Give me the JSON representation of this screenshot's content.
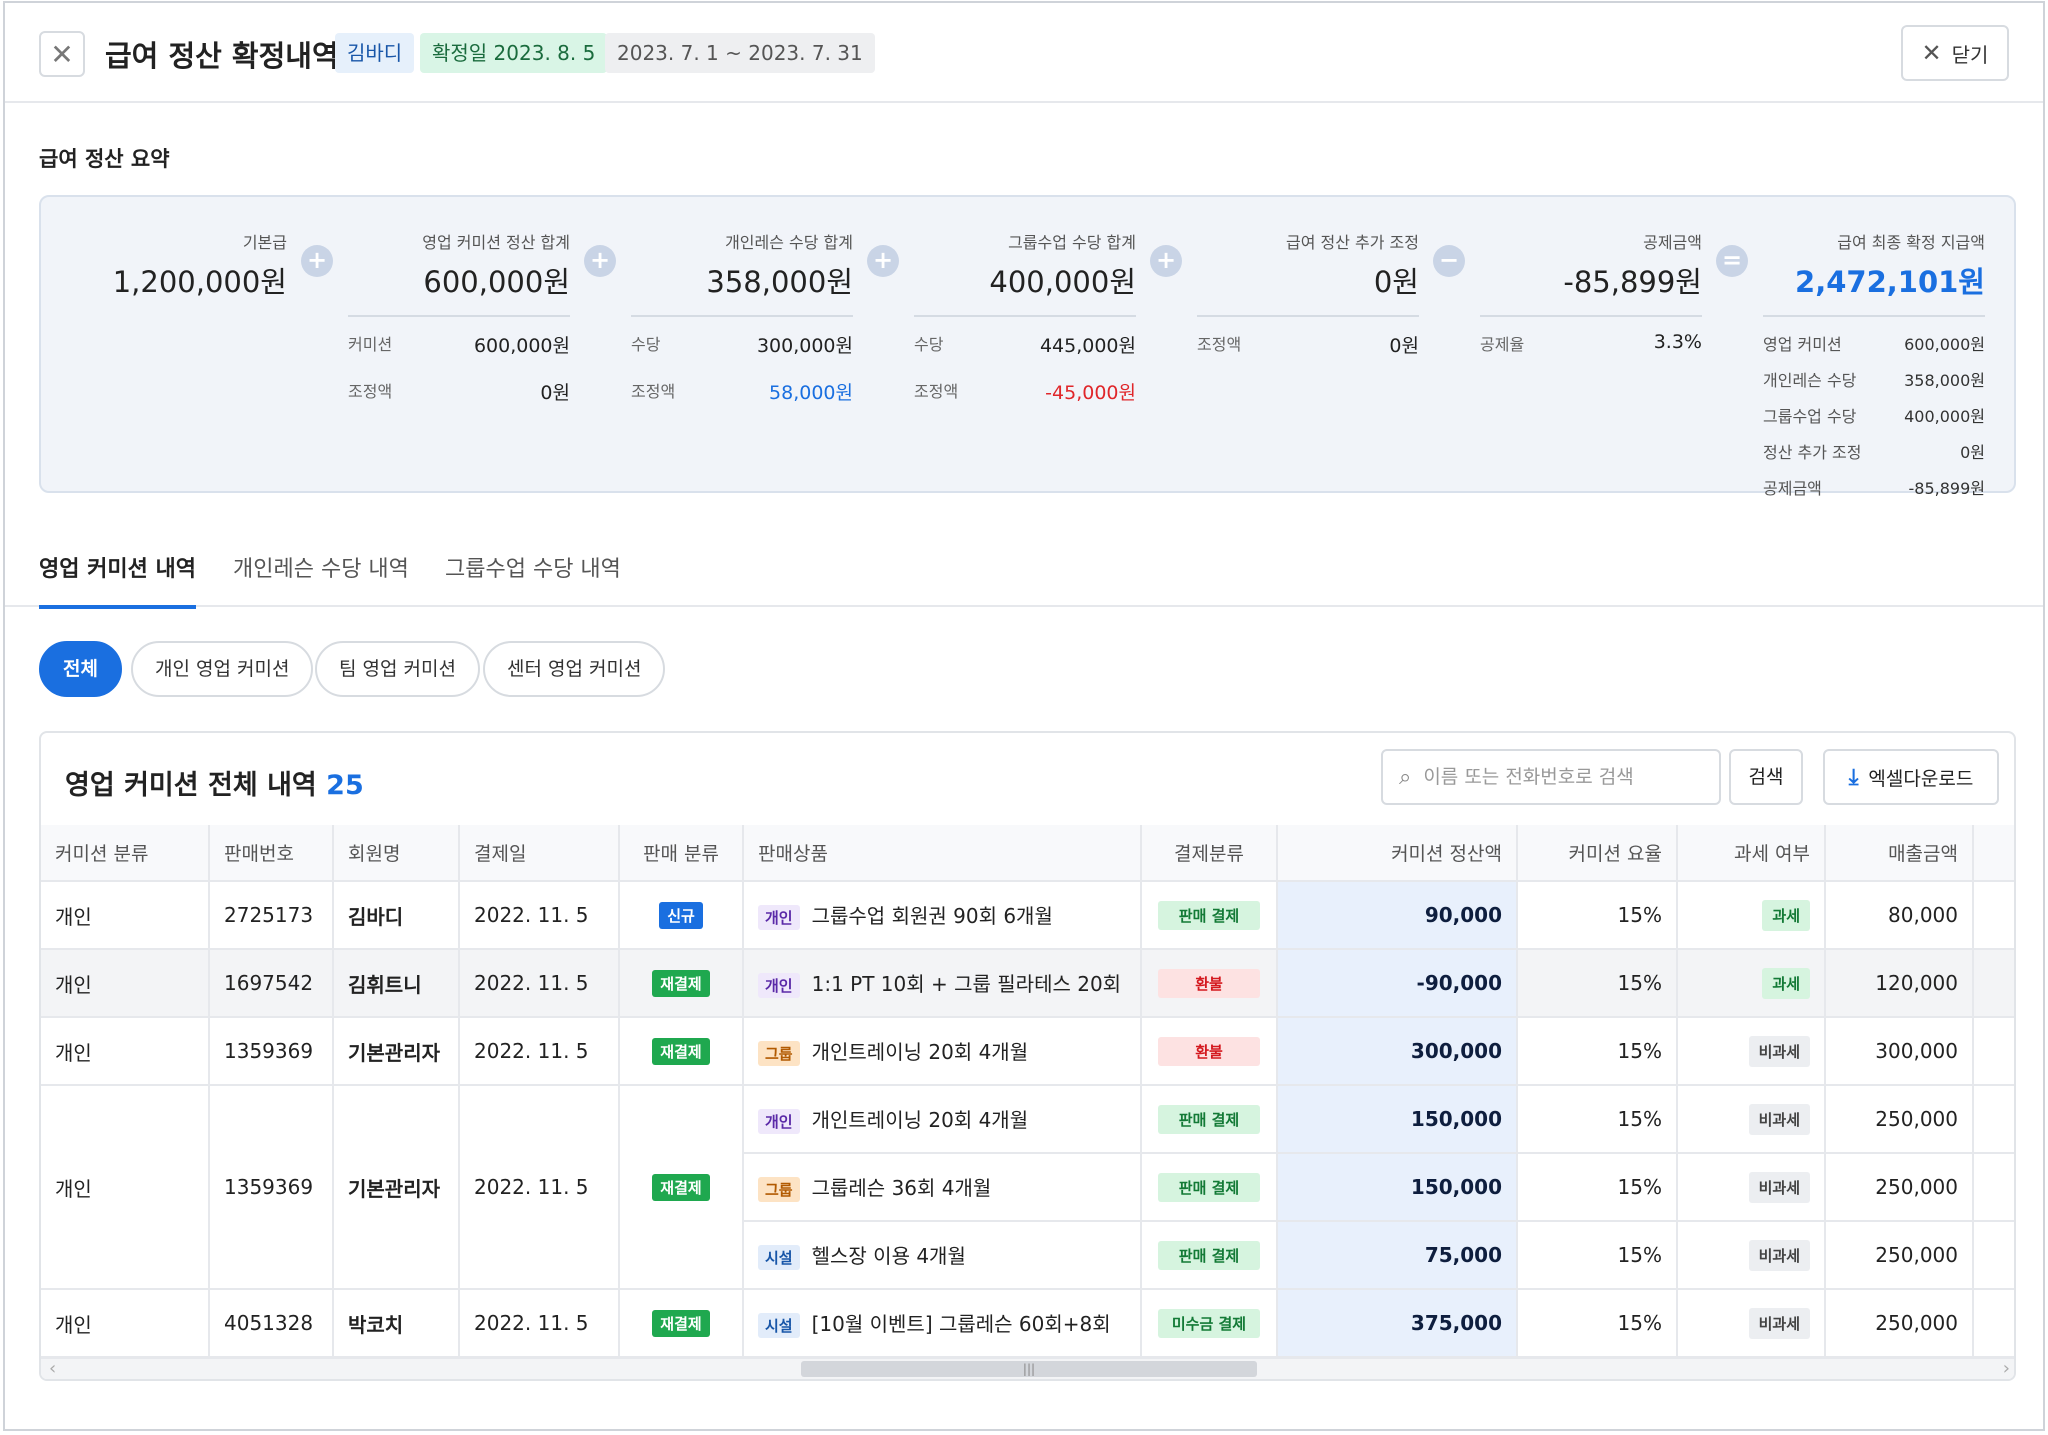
{
  "header": {
    "title": "급여 정산 확정내역",
    "name_tag": "김바디",
    "confirm_tag": "확정일 2023. 8. 5",
    "range_tag": "2023. 7. 1 ~ 2023. 7. 31",
    "close_label": "닫기"
  },
  "summary": {
    "title": "급여 정산 요약",
    "base": {
      "label": "기본급",
      "value": "1,200,000원"
    },
    "sales": {
      "label": "영업 커미션 정산 합계",
      "value": "600,000원",
      "r1k": "커미션",
      "r1v": "600,000원",
      "r2k": "조정액",
      "r2v": "0원"
    },
    "personal": {
      "label": "개인레슨 수당 합계",
      "value": "358,000원",
      "r1k": "수당",
      "r1v": "300,000원",
      "r2k": "조정액",
      "r2v": "58,000원"
    },
    "group": {
      "label": "그룹수업 수당 합계",
      "value": "400,000원",
      "r1k": "수당",
      "r1v": "445,000원",
      "r2k": "조정액",
      "r2v": "-45,000원"
    },
    "adjust": {
      "label": "급여 정산 추가 조정",
      "value": "0원",
      "r1k": "조정액",
      "r1v": "0원"
    },
    "deduct": {
      "label": "공제금액",
      "value": "-85,899원",
      "r1k": "공제율",
      "r1v": "3.3%"
    },
    "final": {
      "label": "급여 최종 확정 지급액",
      "value": "2,472,101원",
      "rows": [
        {
          "k": "영업 커미션",
          "v": "600,000원"
        },
        {
          "k": "개인레슨 수당",
          "v": "358,000원"
        },
        {
          "k": "그룹수업 수당",
          "v": "400,000원"
        },
        {
          "k": "정산 추가 조정",
          "v": "0원"
        },
        {
          "k": "공제금액",
          "v": "-85,899원"
        }
      ]
    }
  },
  "tabs": [
    "영업 커미션 내역",
    "개인레슨 수당 내역",
    "그룹수업 수당 내역"
  ],
  "filters": [
    "전체",
    "개인 영업 커미션",
    "팀 영업 커미션",
    "센터 영업 커미션"
  ],
  "list": {
    "title": "영업 커미션 전체 내역",
    "count": "25",
    "search_placeholder": "이름 또는 전화번호로 검색",
    "search_label": "검색",
    "excel_label": "엑셀다운로드",
    "columns": [
      "커미션 분류",
      "판매번호",
      "회원명",
      "결제일",
      "판매 분류",
      "판매상품",
      "결제분류",
      "커미션 정산액",
      "커미션 요율",
      "과세 여부",
      "매출금액"
    ],
    "rows": [
      {
        "cat": "개인",
        "no": "2725173",
        "member": "김바디",
        "date": "2022. 11. 5",
        "kind": "신규",
        "items": [
          {
            "ptype": "개인",
            "product": "그룹수업 회원권 90회 6개월",
            "pay": "판매 결제",
            "comm": "90,000",
            "rate": "15%",
            "tax": "과세",
            "sales": "80,000"
          }
        ]
      },
      {
        "cat": "개인",
        "no": "1697542",
        "member": "김휘트니",
        "date": "2022. 11. 5",
        "kind": "재결제",
        "items": [
          {
            "ptype": "개인",
            "product": "1:1 PT 10회 + 그룹 필라테스 20회",
            "pay": "환불",
            "comm": "-90,000",
            "rate": "15%",
            "tax": "과세",
            "sales": "120,000"
          }
        ]
      },
      {
        "cat": "개인",
        "no": "1359369",
        "member": "기본관리자",
        "date": "2022. 11. 5",
        "kind": "재결제",
        "items": [
          {
            "ptype": "그룹",
            "product": "개인트레이닝 20회 4개월",
            "pay": "환불",
            "comm": "300,000",
            "rate": "15%",
            "tax": "비과세",
            "sales": "300,000"
          }
        ]
      },
      {
        "cat": "개인",
        "no": "1359369",
        "member": "기본관리자",
        "date": "2022. 11. 5",
        "kind": "재결제",
        "items": [
          {
            "ptype": "개인",
            "product": "개인트레이닝 20회 4개월",
            "pay": "판매 결제",
            "comm": "150,000",
            "rate": "15%",
            "tax": "비과세",
            "sales": "250,000"
          },
          {
            "ptype": "그룹",
            "product": "그룹레슨 36회 4개월",
            "pay": "판매 결제",
            "comm": "150,000",
            "rate": "15%",
            "tax": "비과세",
            "sales": "250,000"
          },
          {
            "ptype": "시설",
            "product": "헬스장 이용 4개월",
            "pay": "판매 결제",
            "comm": "75,000",
            "rate": "15%",
            "tax": "비과세",
            "sales": "250,000"
          }
        ]
      },
      {
        "cat": "개인",
        "no": "4051328",
        "member": "박코치",
        "date": "2022. 11. 5",
        "kind": "재결제",
        "items": [
          {
            "ptype": "시설",
            "product": "[10월 이벤트] 그룹레슨 60회+8회",
            "pay": "미수금 결제",
            "comm": "375,000",
            "rate": "15%",
            "tax": "비과세",
            "sales": "250,000"
          }
        ]
      }
    ]
  },
  "colors": {
    "accent": "#1a6fe0",
    "positive": "#1a6fe0",
    "negative": "#e0262a",
    "success": "#1fa84f"
  },
  "icons": {
    "close": "close-icon",
    "search": "search-icon",
    "download": "download-icon",
    "plus": "plus-icon",
    "minus": "minus-icon",
    "equals": "equals-icon"
  }
}
